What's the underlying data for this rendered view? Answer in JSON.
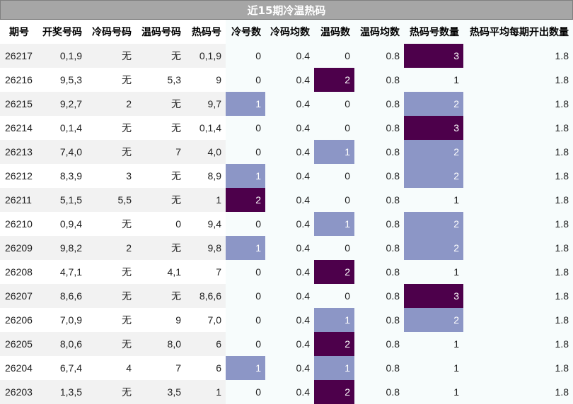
{
  "title": "近15期冷温热码",
  "colors": {
    "level1": "#8c96c6",
    "level2": "#4d004b",
    "title_bg": "#a6a6a6"
  },
  "columns": [
    "期号",
    "开奖号码",
    "冷码号码",
    "温码号码",
    "热码号",
    "冷号数",
    "冷码均数",
    "温码数",
    "温码均数",
    "热码号数量",
    "热码平均每期开出数量"
  ],
  "rows": [
    {
      "issue": "26217",
      "draw": "0,1,9",
      "cold": "无",
      "warm": "无",
      "hot": "0,1,9",
      "cold_n": "0",
      "cold_avg": "0.4",
      "warm_n": "0",
      "warm_avg": "0.8",
      "hot_n": "3",
      "hot_avg": "1.8"
    },
    {
      "issue": "26216",
      "draw": "9,5,3",
      "cold": "无",
      "warm": "5,3",
      "hot": "9",
      "cold_n": "0",
      "cold_avg": "0.4",
      "warm_n": "2",
      "warm_avg": "0.8",
      "hot_n": "1",
      "hot_avg": "1.8"
    },
    {
      "issue": "26215",
      "draw": "9,2,7",
      "cold": "2",
      "warm": "无",
      "hot": "9,7",
      "cold_n": "1",
      "cold_avg": "0.4",
      "warm_n": "0",
      "warm_avg": "0.8",
      "hot_n": "2",
      "hot_avg": "1.8"
    },
    {
      "issue": "26214",
      "draw": "0,1,4",
      "cold": "无",
      "warm": "无",
      "hot": "0,1,4",
      "cold_n": "0",
      "cold_avg": "0.4",
      "warm_n": "0",
      "warm_avg": "0.8",
      "hot_n": "3",
      "hot_avg": "1.8"
    },
    {
      "issue": "26213",
      "draw": "7,4,0",
      "cold": "无",
      "warm": "7",
      "hot": "4,0",
      "cold_n": "0",
      "cold_avg": "0.4",
      "warm_n": "1",
      "warm_avg": "0.8",
      "hot_n": "2",
      "hot_avg": "1.8"
    },
    {
      "issue": "26212",
      "draw": "8,3,9",
      "cold": "3",
      "warm": "无",
      "hot": "8,9",
      "cold_n": "1",
      "cold_avg": "0.4",
      "warm_n": "0",
      "warm_avg": "0.8",
      "hot_n": "2",
      "hot_avg": "1.8"
    },
    {
      "issue": "26211",
      "draw": "5,1,5",
      "cold": "5,5",
      "warm": "无",
      "hot": "1",
      "cold_n": "2",
      "cold_avg": "0.4",
      "warm_n": "0",
      "warm_avg": "0.8",
      "hot_n": "1",
      "hot_avg": "1.8"
    },
    {
      "issue": "26210",
      "draw": "0,9,4",
      "cold": "无",
      "warm": "0",
      "hot": "9,4",
      "cold_n": "0",
      "cold_avg": "0.4",
      "warm_n": "1",
      "warm_avg": "0.8",
      "hot_n": "2",
      "hot_avg": "1.8"
    },
    {
      "issue": "26209",
      "draw": "9,8,2",
      "cold": "2",
      "warm": "无",
      "hot": "9,8",
      "cold_n": "1",
      "cold_avg": "0.4",
      "warm_n": "0",
      "warm_avg": "0.8",
      "hot_n": "2",
      "hot_avg": "1.8"
    },
    {
      "issue": "26208",
      "draw": "4,7,1",
      "cold": "无",
      "warm": "4,1",
      "hot": "7",
      "cold_n": "0",
      "cold_avg": "0.4",
      "warm_n": "2",
      "warm_avg": "0.8",
      "hot_n": "1",
      "hot_avg": "1.8"
    },
    {
      "issue": "26207",
      "draw": "8,6,6",
      "cold": "无",
      "warm": "无",
      "hot": "8,6,6",
      "cold_n": "0",
      "cold_avg": "0.4",
      "warm_n": "0",
      "warm_avg": "0.8",
      "hot_n": "3",
      "hot_avg": "1.8"
    },
    {
      "issue": "26206",
      "draw": "7,0,9",
      "cold": "无",
      "warm": "9",
      "hot": "7,0",
      "cold_n": "0",
      "cold_avg": "0.4",
      "warm_n": "1",
      "warm_avg": "0.8",
      "hot_n": "2",
      "hot_avg": "1.8"
    },
    {
      "issue": "26205",
      "draw": "8,0,6",
      "cold": "无",
      "warm": "8,0",
      "hot": "6",
      "cold_n": "0",
      "cold_avg": "0.4",
      "warm_n": "2",
      "warm_avg": "0.8",
      "hot_n": "1",
      "hot_avg": "1.8"
    },
    {
      "issue": "26204",
      "draw": "6,7,4",
      "cold": "4",
      "warm": "7",
      "hot": "6",
      "cold_n": "1",
      "cold_avg": "0.4",
      "warm_n": "1",
      "warm_avg": "0.8",
      "hot_n": "1",
      "hot_avg": "1.8"
    },
    {
      "issue": "26203",
      "draw": "1,3,5",
      "cold": "无",
      "warm": "3,5",
      "hot": "1",
      "cold_n": "0",
      "cold_avg": "0.4",
      "warm_n": "2",
      "warm_avg": "0.8",
      "hot_n": "1",
      "hot_avg": "1.8"
    }
  ]
}
